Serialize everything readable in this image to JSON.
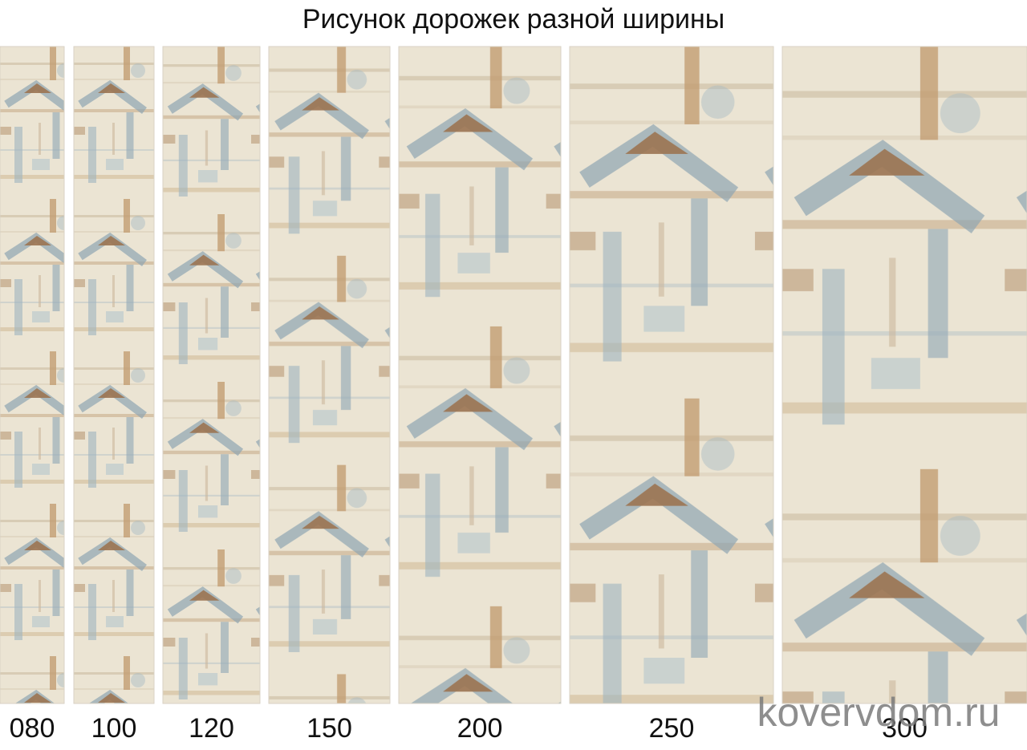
{
  "title": "Рисунок дорожек разной ширины",
  "runners": [
    {
      "label": "080"
    },
    {
      "label": "100"
    },
    {
      "label": "120"
    },
    {
      "label": "150"
    },
    {
      "label": "200"
    },
    {
      "label": "250"
    },
    {
      "label": "300"
    }
  ],
  "watermark": "kovervdom.ru"
}
